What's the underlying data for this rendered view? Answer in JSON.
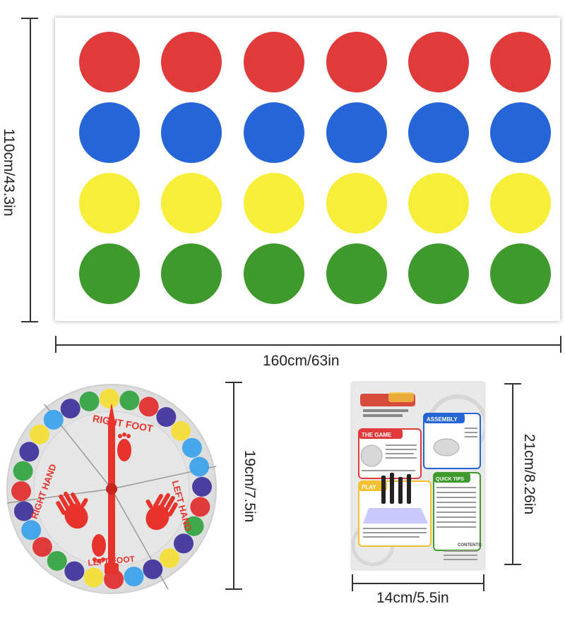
{
  "mat": {
    "rows": [
      {
        "color": "#e03a3a",
        "count": 6
      },
      {
        "color": "#2565d8",
        "count": 6
      },
      {
        "color": "#f7ee3a",
        "count": 6
      },
      {
        "color": "#3f9a2e",
        "count": 6
      }
    ],
    "width_label": "160cm/63in",
    "height_label": "110cm/43.3in"
  },
  "spinner": {
    "size_label": "19cm/7.5in",
    "sections": {
      "right_foot": "RIGHT FOOT",
      "left_hand": "LEFT HAND",
      "right_hand": "RIGHT HAND",
      "left_foot": "LEFT FOOT"
    },
    "colors": {
      "red": "#e03a3a",
      "blue": "#45a6ea",
      "yellow": "#f3df40",
      "green": "#3fa84a",
      "purple": "#4a3fa0",
      "arrow": "#e8332c"
    }
  },
  "manual": {
    "width_label": "14cm/5.5in",
    "height_label": "21cm/8.26in",
    "sections": {
      "game": "THE GAME",
      "assembly": "ASSEMBLY",
      "play": "PLAY",
      "quick_tips": "QUICK TIPS",
      "contents": "CONTENTS:"
    }
  }
}
